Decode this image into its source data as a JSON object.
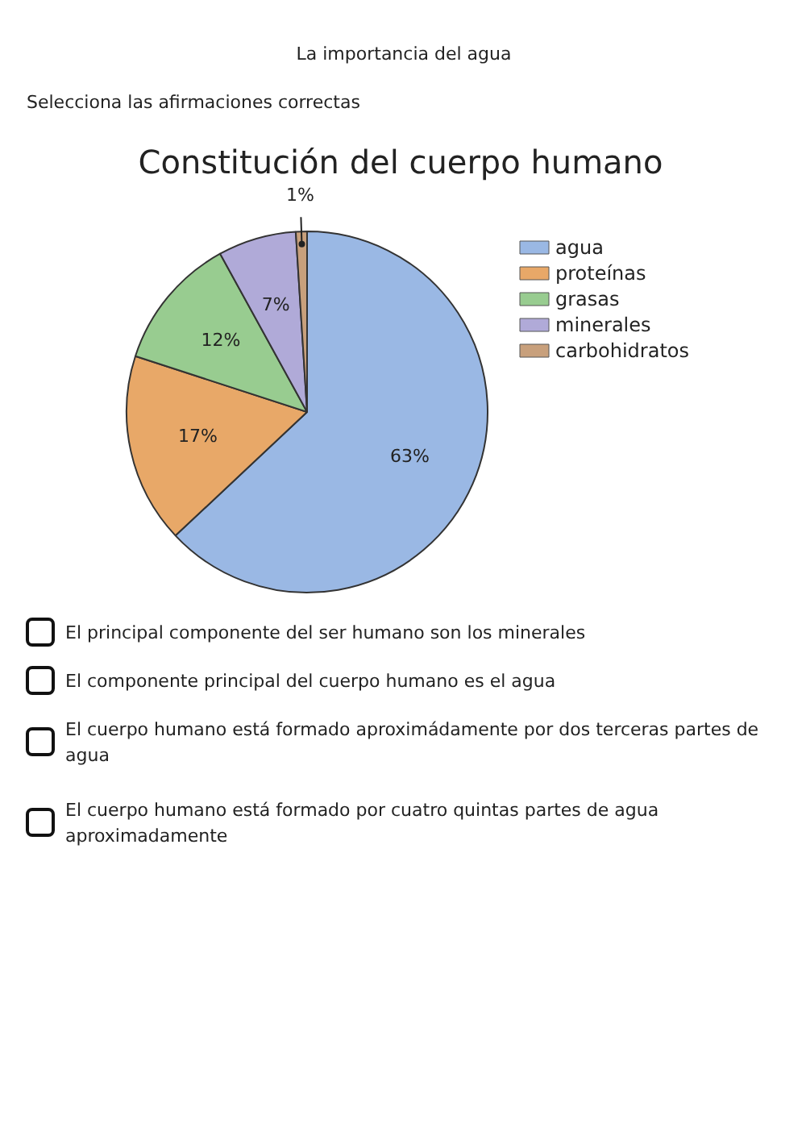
{
  "chart_data": {
    "type": "pie",
    "title": "Constitución del cuerpo humano",
    "categories": [
      "agua",
      "proteínas",
      "grasas",
      "minerales",
      "carbohidratos"
    ],
    "values": [
      63,
      17,
      12,
      7,
      1
    ],
    "colors": [
      "#9ab8e4",
      "#e8a868",
      "#98cc90",
      "#b0aad8",
      "#c8a07c"
    ],
    "value_labels": [
      "63%",
      "17%",
      "12%",
      "7%",
      "1%"
    ],
    "legend": "right",
    "annotations": [
      "La importancia del agua",
      "Selecciona las afirmaciones correctas",
      "El principal componente del ser humano son los minerales",
      "El componente principal del cuerpo humano es el agua",
      "El cuerpo humano está formado aproximádamente por dos terceras partes de agua",
      "El cuerpo humano está formado por cuatro quintas partes de agua aproximadamente"
    ]
  }
}
